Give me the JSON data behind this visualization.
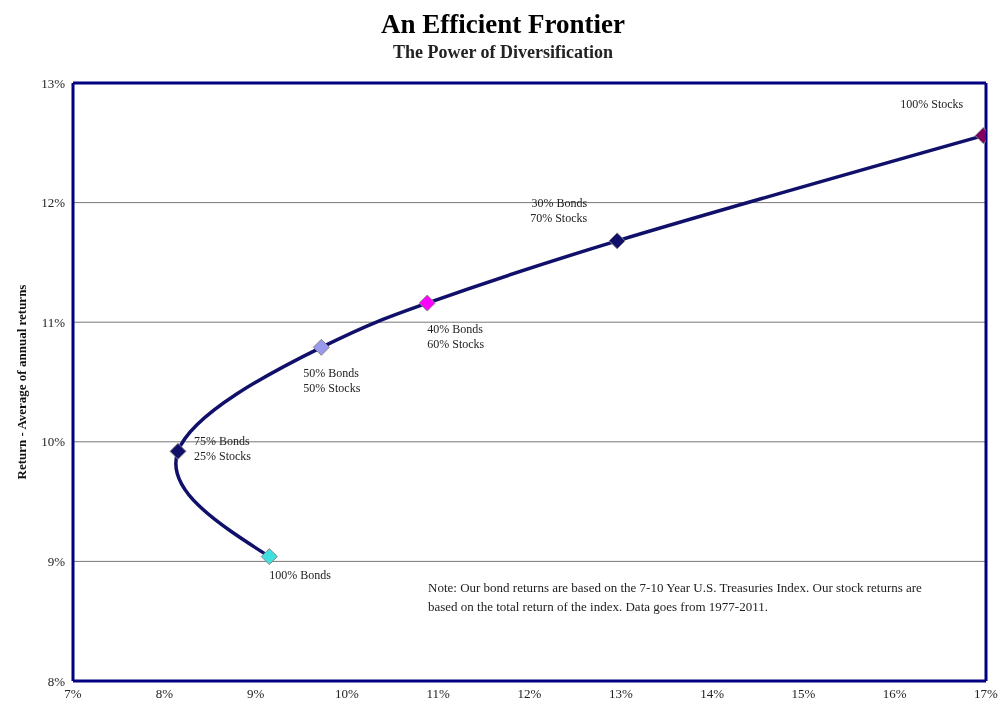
{
  "chart_data": {
    "type": "line",
    "title": "An Efficient Frontier",
    "subtitle": "The Power of Diversification",
    "ylabel": "Return - Average of annual returns",
    "x": [
      9.15,
      8.15,
      9.72,
      10.88,
      12.96,
      16.97
    ],
    "series": [
      {
        "color": "#10106a",
        "values": [
          9.04,
          9.92,
          10.79,
          11.16,
          11.68,
          12.56
        ],
        "colors": [
          "#40e0e0",
          "#10106a",
          "#9999ee",
          "#ff00ff",
          "#10106a",
          "#800060"
        ]
      }
    ],
    "xlim": [
      7,
      17
    ],
    "xticks": [
      {
        "value": 7,
        "label": "7%"
      },
      {
        "value": 8,
        "label": "8%"
      },
      {
        "value": 9,
        "label": "9%"
      },
      {
        "value": 10,
        "label": "10%"
      },
      {
        "value": 11,
        "label": "11%"
      },
      {
        "value": 12,
        "label": "12%"
      },
      {
        "value": 13,
        "label": "13%"
      },
      {
        "value": 14,
        "label": "14%"
      },
      {
        "value": 15,
        "label": "15%"
      },
      {
        "value": 16,
        "label": "16%"
      },
      {
        "value": 17,
        "label": "17%"
      }
    ],
    "ylim": [
      8,
      13
    ],
    "yticks": [
      {
        "value": 8,
        "label": "8%"
      },
      {
        "value": 9,
        "label": "9%"
      },
      {
        "value": 10,
        "label": "10%"
      },
      {
        "value": 11,
        "label": "11%"
      },
      {
        "value": 12,
        "label": "12%"
      },
      {
        "value": 13,
        "label": "13%"
      }
    ],
    "grid": "y",
    "marker": "diamond",
    "line_style": "solid",
    "annotations": [
      {
        "text": "100% Bonds",
        "x": 9.15,
        "y": 9.04
      },
      {
        "text": "75% Bonds\n25% Stocks",
        "x": 8.15,
        "y": 9.92
      },
      {
        "text": "50% Bonds\n50% Stocks",
        "x": 9.72,
        "y": 10.79
      },
      {
        "text": "40% Bonds\n60% Stocks",
        "x": 10.88,
        "y": 11.16
      },
      {
        "text": "30% Bonds\n70% Stocks",
        "x": 12.96,
        "y": 11.68
      },
      {
        "text": "100% Stocks",
        "x": 16.97,
        "y": 12.56
      },
      "Note:  Our bond returns are based on the 7-10 Year U.S. Treasuries Index.  Our stock returns are based on the total return of the index.  Data goes from 1977-2011."
    ]
  }
}
